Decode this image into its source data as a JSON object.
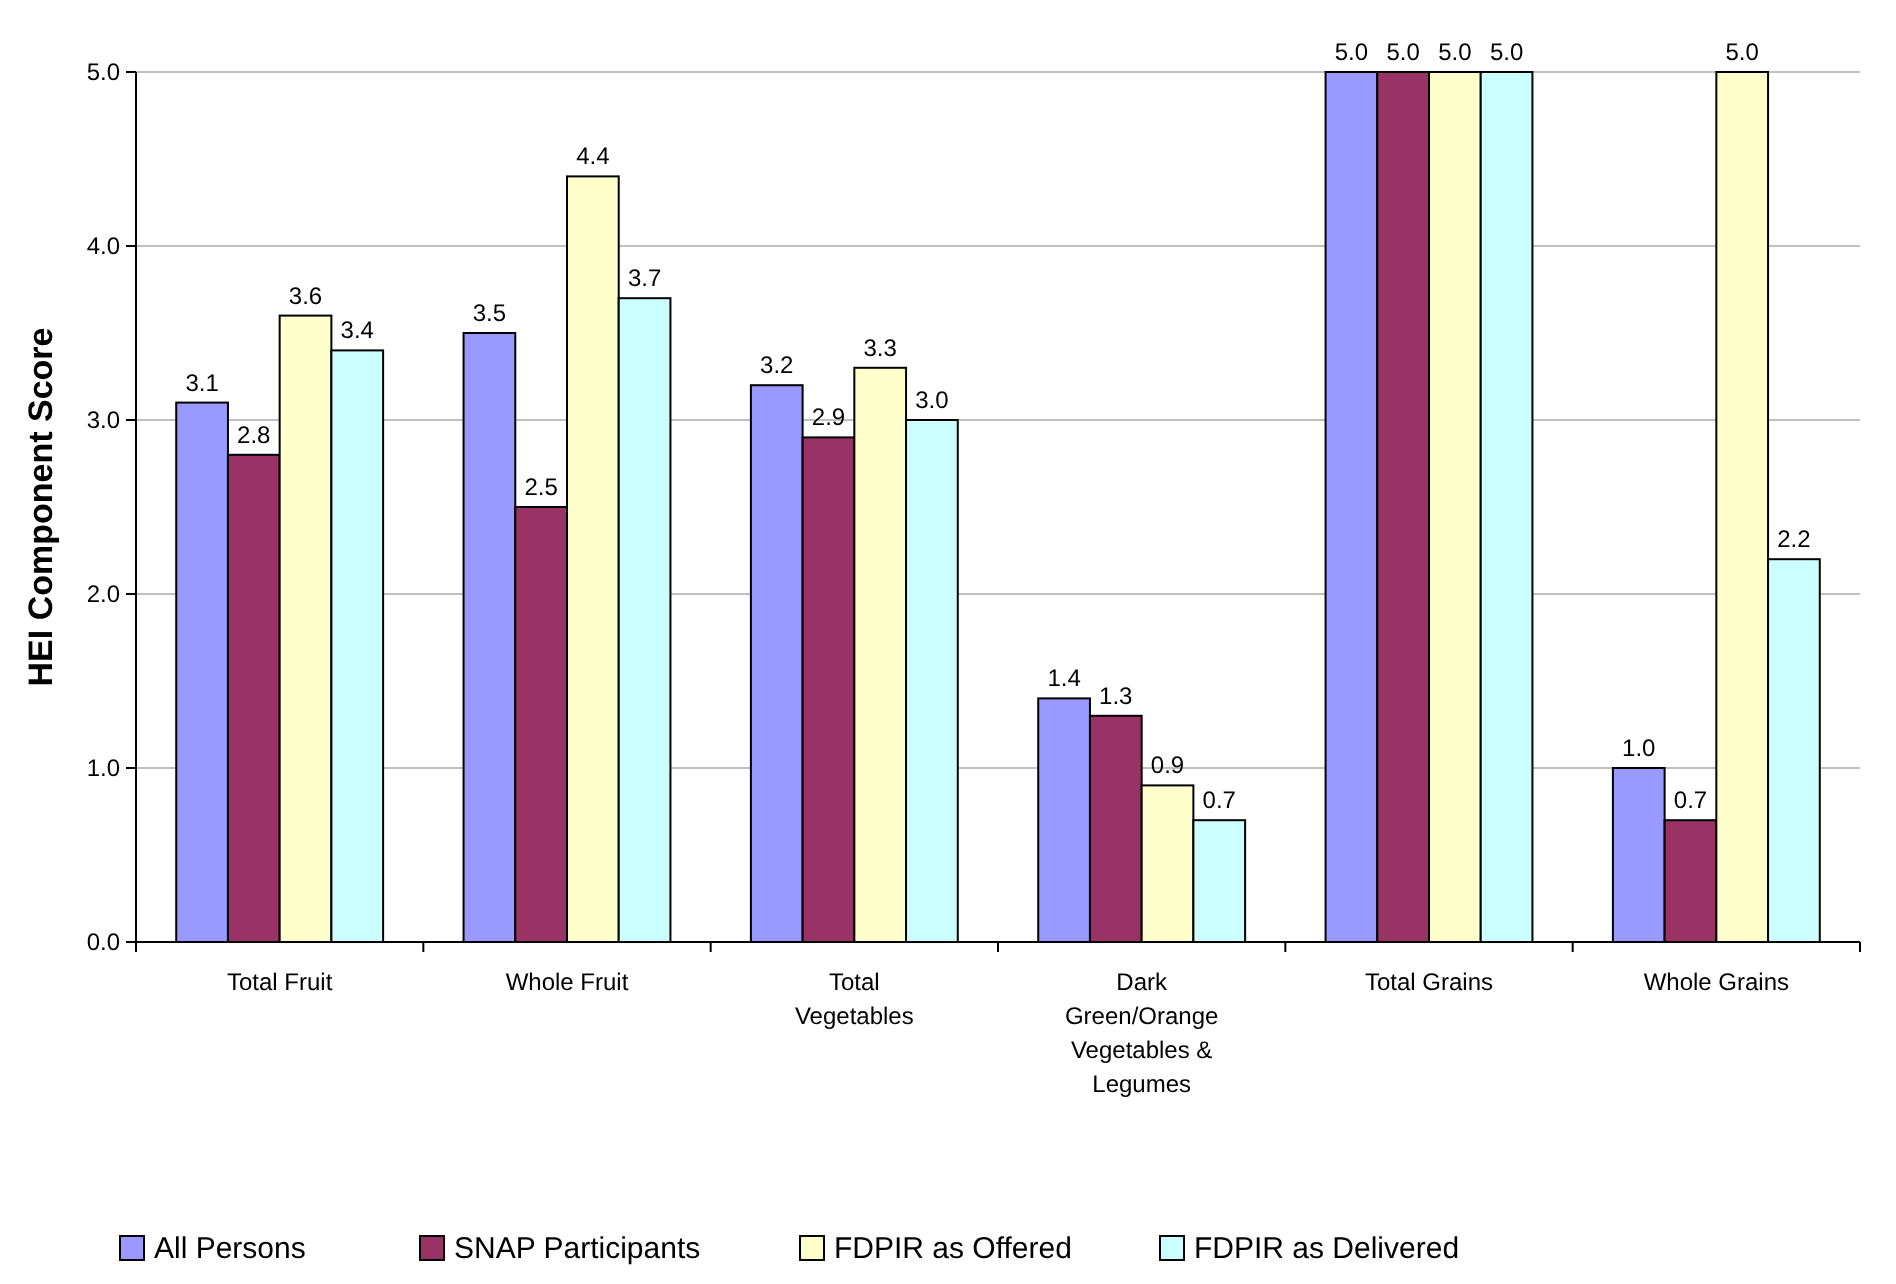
{
  "chart_data": {
    "type": "bar",
    "ylabel": "HEI Component Score",
    "categories": [
      "Total Fruit",
      "Whole Fruit",
      "Total Vegetables",
      "Dark Green/Orange Vegetables & Legumes",
      "Total Grains",
      "Whole Grains"
    ],
    "series": [
      {
        "name": "All Persons",
        "color": "#9999ff",
        "values": [
          3.1,
          3.5,
          3.2,
          1.4,
          5.0,
          1.0
        ],
        "value_labels": [
          "3.1",
          "3.5",
          "3.2",
          "1.4",
          "5.0",
          "1.0"
        ]
      },
      {
        "name": "SNAP Participants",
        "color": "#993366",
        "values": [
          2.8,
          2.5,
          2.9,
          1.3,
          5.0,
          0.7
        ],
        "value_labels": [
          "2.8",
          "2.5",
          "2.9",
          "1.3",
          "5.0",
          "0.7"
        ]
      },
      {
        "name": "FDPIR as Offered",
        "color": "#ffffcc",
        "values": [
          3.6,
          4.4,
          3.3,
          0.9,
          5.0,
          5.0
        ],
        "value_labels": [
          "3.6",
          "4.4",
          "3.3",
          "0.9",
          "5.0",
          "5.0"
        ]
      },
      {
        "name": "FDPIR as Delivered",
        "color": "#ccffff",
        "values": [
          3.4,
          3.7,
          3.0,
          0.7,
          5.0,
          2.2
        ],
        "value_labels": [
          "3.4",
          "3.7",
          "3.0",
          "0.7",
          "5.0",
          "2.2"
        ]
      }
    ],
    "ylim": [
      0,
      5
    ],
    "yticks": [
      {
        "value": 0,
        "label": "0.0"
      },
      {
        "value": 1,
        "label": "1.0"
      },
      {
        "value": 2,
        "label": "2.0"
      },
      {
        "value": 3,
        "label": "3.0"
      },
      {
        "value": 4,
        "label": "4.0"
      },
      {
        "value": 5,
        "label": "5.0"
      }
    ],
    "grid": "y",
    "legend": "bottom"
  }
}
